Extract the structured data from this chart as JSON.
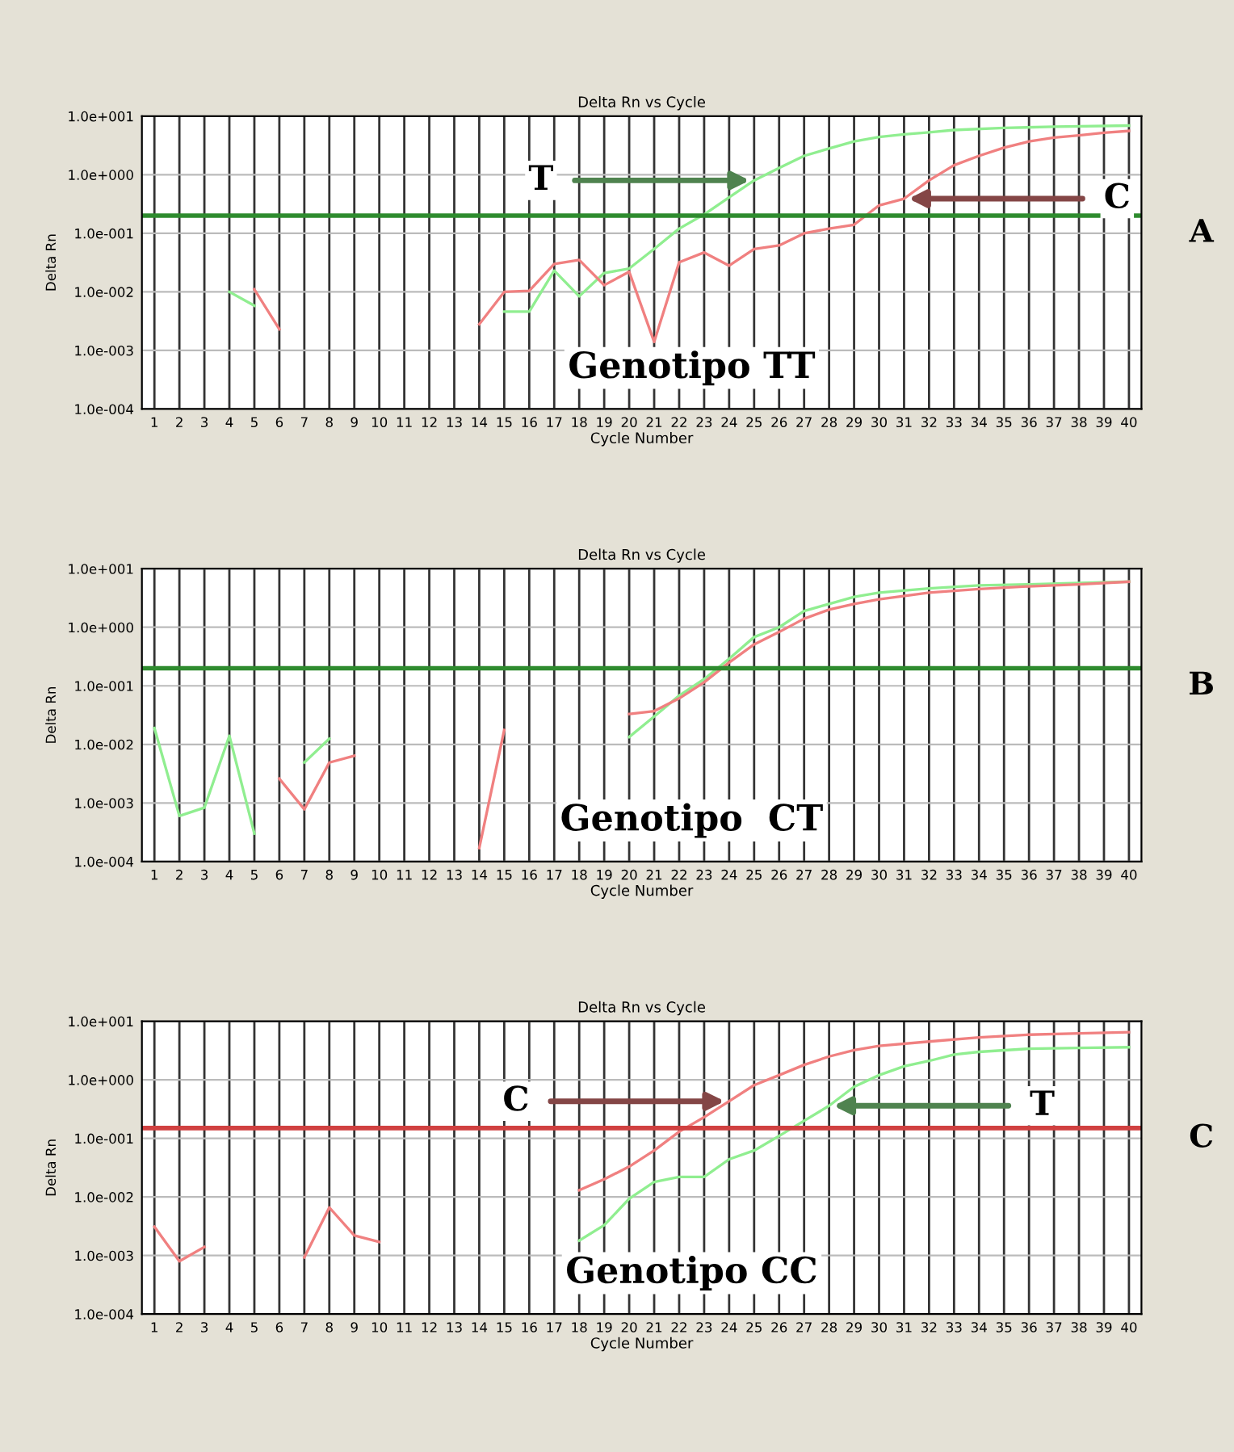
{
  "chart_data": [
    {
      "type": "line",
      "title": "Delta Rn vs Cycle",
      "xlabel": "Cycle Number",
      "ylabel": "Delta Rn",
      "log": "y",
      "grid": true,
      "marker": "none",
      "line_style": "solid",
      "xlim": [
        0.5,
        40.5
      ],
      "xticks": [
        1,
        2,
        3,
        4,
        5,
        6,
        7,
        8,
        9,
        10,
        11,
        12,
        13,
        14,
        15,
        16,
        17,
        18,
        19,
        20,
        21,
        22,
        23,
        24,
        25,
        26,
        27,
        28,
        29,
        30,
        31,
        32,
        33,
        34,
        35,
        36,
        37,
        38,
        39,
        40
      ],
      "ylim": [
        0.0001,
        10
      ],
      "yticks": [
        {
          "value": 0.0001,
          "label": "1.0e-004"
        },
        {
          "value": 0.001,
          "label": "1.0e-003"
        },
        {
          "value": 0.01,
          "label": "1.0e-002"
        },
        {
          "value": 0.1,
          "label": "1.0e-001"
        },
        {
          "value": 1,
          "label": "1.0e+000"
        },
        {
          "value": 10,
          "label": "1.0e+001"
        }
      ],
      "series": [
        {
          "color": "#90ee90",
          "x": [
            4,
            5,
            6,
            15,
            16,
            17,
            18,
            19,
            20,
            21,
            22,
            23,
            24,
            25,
            26,
            27,
            28,
            29,
            30,
            31,
            32,
            33,
            35,
            37,
            40
          ],
          "values": [
            0.01,
            0.0058,
            null,
            0.0046,
            0.0046,
            0.023,
            0.0084,
            0.021,
            0.025,
            0.054,
            0.12,
            0.21,
            0.41,
            0.8,
            1.3,
            2.1,
            2.8,
            3.7,
            4.4,
            4.9,
            5.3,
            5.8,
            6.3,
            6.6,
            6.9
          ]
        },
        {
          "color": "#f08080",
          "x": [
            5,
            6,
            7,
            14,
            15,
            16,
            17,
            18,
            19,
            20,
            21,
            22,
            23,
            24,
            25,
            26,
            27,
            28,
            29,
            30,
            31,
            32,
            33,
            34,
            35,
            36,
            37,
            38,
            39,
            40
          ],
          "values": [
            0.011,
            0.0023,
            null,
            0.0028,
            0.01,
            0.0104,
            0.03,
            0.035,
            0.013,
            0.022,
            0.0014,
            0.032,
            0.047,
            0.028,
            0.054,
            0.062,
            0.1,
            0.12,
            0.14,
            0.3,
            0.39,
            0.8,
            1.45,
            2.1,
            2.9,
            3.7,
            4.3,
            4.7,
            5.2,
            5.6
          ]
        }
      ],
      "ref_lines": [
        {
          "axis": "y",
          "value": 0.2,
          "color": "#2e8b2e"
        }
      ],
      "annotations": [
        {
          "text": "T",
          "x": 25,
          "y": 0.8
        },
        {
          "text": "C",
          "x": 31,
          "y": 0.39
        },
        "Genotipo TT",
        "A"
      ]
    },
    {
      "type": "line",
      "title": "Delta Rn vs Cycle",
      "xlabel": "Cycle Number",
      "ylabel": "Delta Rn",
      "log": "y",
      "grid": true,
      "marker": "none",
      "line_style": "solid",
      "xlim": [
        0.5,
        40.5
      ],
      "xticks": [
        1,
        2,
        3,
        4,
        5,
        6,
        7,
        8,
        9,
        10,
        11,
        12,
        13,
        14,
        15,
        16,
        17,
        18,
        19,
        20,
        21,
        22,
        23,
        24,
        25,
        26,
        27,
        28,
        29,
        30,
        31,
        32,
        33,
        34,
        35,
        36,
        37,
        38,
        39,
        40
      ],
      "ylim": [
        0.0001,
        10
      ],
      "yticks": [
        {
          "value": 0.0001,
          "label": "1.0e-004"
        },
        {
          "value": 0.001,
          "label": "1.0e-003"
        },
        {
          "value": 0.01,
          "label": "1.0e-002"
        },
        {
          "value": 0.1,
          "label": "1.0e-001"
        },
        {
          "value": 1,
          "label": "1.0e+000"
        },
        {
          "value": 10,
          "label": "1.0e+001"
        }
      ],
      "series": [
        {
          "color": "#90ee90",
          "x": [
            1,
            2,
            3,
            4,
            5,
            6,
            7,
            8,
            9,
            20,
            21,
            22,
            23,
            24,
            25,
            26,
            27,
            28,
            29,
            30,
            32,
            34,
            36,
            38,
            40
          ],
          "values": [
            0.019,
            0.0006,
            0.00083,
            0.014,
            0.0003,
            null,
            0.0049,
            0.0125,
            null,
            0.0134,
            0.03,
            0.068,
            0.13,
            0.29,
            0.68,
            1.0,
            1.9,
            2.5,
            3.3,
            3.9,
            4.6,
            5.2,
            5.4,
            5.7,
            6.0
          ]
        },
        {
          "color": "#f08080",
          "x": [
            6,
            7,
            8,
            9,
            10,
            14,
            15,
            16,
            20,
            21,
            22,
            23,
            24,
            25,
            26,
            27,
            28,
            29,
            30,
            32,
            34,
            36,
            38,
            40
          ],
          "values": [
            0.0026,
            0.00078,
            0.0049,
            0.0064,
            null,
            0.00017,
            0.0176,
            null,
            0.033,
            0.037,
            0.061,
            0.115,
            0.25,
            0.51,
            0.83,
            1.4,
            2.0,
            2.5,
            3.0,
            3.9,
            4.5,
            5.0,
            5.4,
            6.0
          ]
        }
      ],
      "ref_lines": [
        {
          "axis": "y",
          "value": 0.2,
          "color": "#2e8b2e"
        }
      ],
      "annotations": [
        "Genotipo  CT",
        "B"
      ]
    },
    {
      "type": "line",
      "title": "Delta Rn vs Cycle",
      "xlabel": "Cycle Number",
      "ylabel": "Delta Rn",
      "log": "y",
      "grid": true,
      "marker": "none",
      "line_style": "solid",
      "xlim": [
        0.5,
        40.5
      ],
      "xticks": [
        1,
        2,
        3,
        4,
        5,
        6,
        7,
        8,
        9,
        10,
        11,
        12,
        13,
        14,
        15,
        16,
        17,
        18,
        19,
        20,
        21,
        22,
        23,
        24,
        25,
        26,
        27,
        28,
        29,
        30,
        31,
        32,
        33,
        34,
        35,
        36,
        37,
        38,
        39,
        40
      ],
      "ylim": [
        0.0001,
        10
      ],
      "yticks": [
        {
          "value": 0.0001,
          "label": "1.0e-004"
        },
        {
          "value": 0.001,
          "label": "1.0e-003"
        },
        {
          "value": 0.01,
          "label": "1.0e-002"
        },
        {
          "value": 0.1,
          "label": "1.0e-001"
        },
        {
          "value": 1,
          "label": "1.0e+000"
        },
        {
          "value": 10,
          "label": "1.0e+001"
        }
      ],
      "series": [
        {
          "color": "#f08080",
          "x": [
            1,
            2,
            3,
            4,
            7,
            8,
            9,
            10,
            11,
            18,
            19,
            20,
            21,
            22,
            23,
            24,
            25,
            26,
            27,
            28,
            29,
            30,
            32,
            34,
            36,
            38,
            40
          ],
          "values": [
            0.0031,
            0.0008,
            0.0014,
            null,
            0.00093,
            0.0066,
            0.0022,
            0.0017,
            null,
            0.013,
            0.02,
            0.033,
            0.062,
            0.13,
            0.23,
            0.43,
            0.81,
            1.2,
            1.8,
            2.5,
            3.2,
            3.8,
            4.5,
            5.3,
            5.9,
            6.2,
            6.5
          ]
        },
        {
          "color": "#90ee90",
          "x": [
            18,
            19,
            20,
            21,
            22,
            23,
            24,
            25,
            26,
            27,
            28,
            29,
            30,
            31,
            32,
            33,
            34,
            36,
            38,
            40
          ],
          "values": [
            0.0018,
            0.0033,
            0.0093,
            0.018,
            0.022,
            0.022,
            0.044,
            0.062,
            0.11,
            0.2,
            0.36,
            0.76,
            1.2,
            1.7,
            2.1,
            2.7,
            3.0,
            3.4,
            3.5,
            3.6
          ]
        }
      ],
      "ref_lines": [
        {
          "axis": "y",
          "value": 0.15,
          "color": "#d04040"
        }
      ],
      "annotations": [
        {
          "text": "C",
          "x": 24,
          "y": 0.43
        },
        {
          "text": "T",
          "x": 28,
          "y": 0.36
        },
        "Genotipo CC",
        "C"
      ]
    }
  ]
}
